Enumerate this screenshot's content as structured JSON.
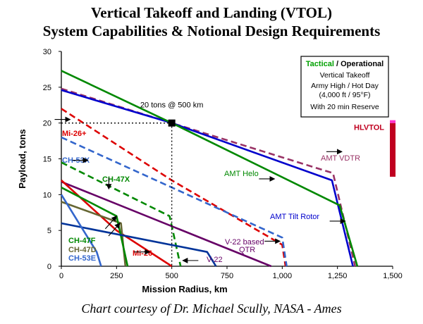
{
  "title_line1": "Vertical Takeoff and Landing (VTOL)",
  "title_line2": "System Capabilities & Notional Design Requirements",
  "credit": "Chart courtesy of Dr. Michael Scully, NASA - Ames",
  "chart_data": {
    "type": "line",
    "xlabel": "Mission Radius,  km",
    "ylabel": "Payload,  tons",
    "xlim": [
      0,
      1500
    ],
    "ylim": [
      0,
      30
    ],
    "xticks": [
      0,
      250,
      500,
      750,
      1000,
      1250,
      1500
    ],
    "xtick_labels": [
      "0",
      "250",
      "500",
      "750",
      "1,000",
      "1,250",
      "1,500"
    ],
    "yticks": [
      0,
      5,
      10,
      15,
      20,
      25,
      30
    ],
    "ytick_labels": [
      "0",
      "5",
      "10",
      "15",
      "20",
      "25",
      "30"
    ],
    "grid": false,
    "legend_box": {
      "title_part1": "Tactical",
      "title_sep": " / ",
      "title_part2": "Operational",
      "lines": [
        "Vertical Takeoff",
        "Army High / Hot Day",
        "(4,000 ft / 95°F)",
        "With 20 min Reserve"
      ],
      "title_color1": "#00a000",
      "title_color2": "#000000"
    },
    "requirement": {
      "label": "20 tons @ 500 km",
      "x": 500,
      "y": 20
    },
    "hlvtol": {
      "label": "HLVTOL",
      "y_min": 12.5,
      "y_max": 20,
      "color": "#c00020"
    },
    "series": [
      {
        "name": "AMT VDTR",
        "color": "#993366",
        "dash": true,
        "x": [
          0,
          500,
          1230,
          1330
        ],
        "y": [
          24.8,
          20,
          13,
          0
        ]
      },
      {
        "name": "AMT Tilt Rotor",
        "color": "#0000cc",
        "dash": false,
        "x": [
          0,
          500,
          1225,
          1320
        ],
        "y": [
          24.6,
          20,
          12,
          0
        ]
      },
      {
        "name": "AMT Helo",
        "color": "#008800",
        "dash": false,
        "x": [
          0,
          500,
          1260,
          1340
        ],
        "y": [
          27.3,
          20,
          8.5,
          0
        ]
      },
      {
        "name": "Mi-26+",
        "color": "#dd0000",
        "dash": true,
        "x": [
          0,
          500,
          1000,
          1015
        ],
        "y": [
          22,
          12,
          3,
          0
        ]
      },
      {
        "name": "V-22 based QTR",
        "color": "#3366cc",
        "dash": true,
        "x": [
          0,
          1000,
          1020
        ],
        "y": [
          18,
          4,
          0
        ]
      },
      {
        "name": "CH-47X",
        "color": "#008800",
        "dash": true,
        "x": [
          0,
          490,
          540
        ],
        "y": [
          14.5,
          7,
          0
        ]
      },
      {
        "name": "V-22",
        "color": "#660066",
        "dash": false,
        "x": [
          0,
          950
        ],
        "y": [
          11.8,
          0
        ]
      },
      {
        "name": "Mi-26",
        "color": "#dd0000",
        "dash": false,
        "x": [
          0,
          250,
          500
        ],
        "y": [
          12,
          5,
          0
        ]
      },
      {
        "name": "CH-47D",
        "color": "#666633",
        "dash": false,
        "x": [
          0,
          270,
          290
        ],
        "y": [
          9,
          6,
          0
        ]
      },
      {
        "name": "CH-47F",
        "color": "#008800",
        "dash": false,
        "x": [
          0,
          250,
          300
        ],
        "y": [
          11,
          7,
          0
        ]
      },
      {
        "name": "CH-53X",
        "color": "#003399",
        "dash": false,
        "x": [
          0,
          660,
          700
        ],
        "y": [
          6,
          2,
          0
        ]
      },
      {
        "name": "CH-53E",
        "color": "#3366cc",
        "dash": false,
        "x": [
          0,
          160,
          180
        ],
        "y": [
          10,
          2,
          0
        ]
      }
    ],
    "annotations": [
      {
        "text": "Mi-26+",
        "color": "#dd0000",
        "arrow_to": [
          40,
          20.5
        ],
        "arrow_dir": "right"
      },
      {
        "text": "CH-53X",
        "color": "#3366cc",
        "arrow_to": [
          120,
          14.8
        ],
        "arrow_dir": "right"
      },
      {
        "text": "CH-47X",
        "color": "#008800",
        "arrow_to": [
          215,
          10.8
        ],
        "arrow_dir": "down"
      },
      {
        "text": "AMT VDTR",
        "color": "#993366",
        "arrow_to": [
          1270,
          16.0
        ],
        "arrow_dir": "right"
      },
      {
        "text": "AMT Helo",
        "color": "#008800",
        "arrow_to": [
          965,
          12.2
        ],
        "arrow_dir": "right"
      },
      {
        "text": "AMT Tilt Rotor",
        "color": "#0000cc",
        "arrow_to": [
          1285,
          6.3
        ],
        "arrow_dir": "right"
      },
      {
        "text": "CH-47F",
        "color": "#008800",
        "arrow_to": [
          250,
          7.0
        ],
        "arrow_dir": "up"
      },
      {
        "text": "CH-47D",
        "color": "#666633",
        "arrow_to": [
          265,
          6.0
        ],
        "arrow_dir": "up"
      },
      {
        "text": "CH-53E",
        "color": "#3366cc",
        "arrow_to": null,
        "arrow_dir": null
      },
      {
        "text": "Mi-26",
        "color": "#dd0000",
        "arrow_to": [
          400,
          2.0
        ],
        "arrow_dir": "right"
      },
      {
        "text": "V-22",
        "color": "#660066",
        "arrow_to": [
          550,
          0.8
        ],
        "arrow_dir": "left"
      },
      {
        "text": "V-22 based",
        "color": "#660066",
        "arrow_to": null,
        "arrow_dir": null
      },
      {
        "text": "QTR",
        "color": "#660066",
        "arrow_to": [
          990,
          3.5
        ],
        "arrow_dir": "right"
      }
    ]
  }
}
